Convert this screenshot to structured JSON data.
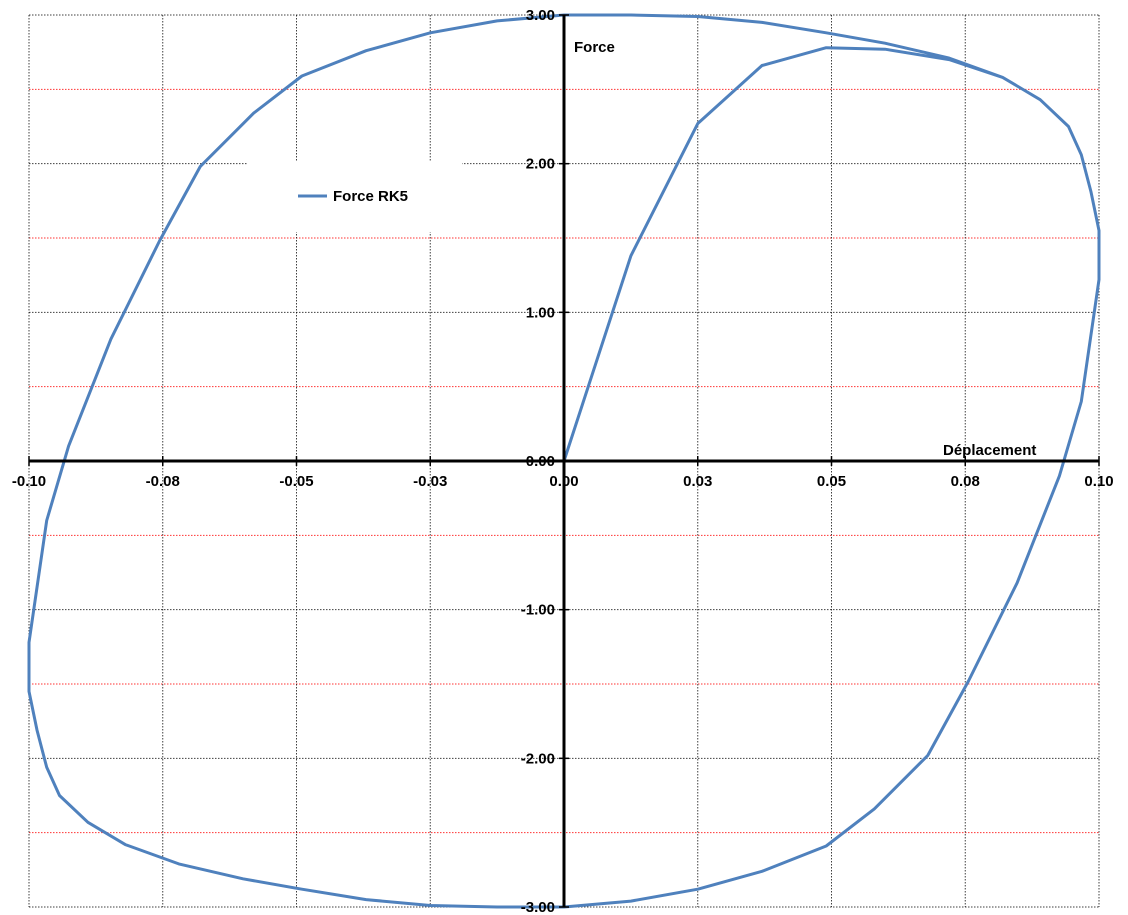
{
  "chart_data": {
    "type": "line",
    "xlabel": "Déplacement",
    "ylabel": "Force",
    "xlim": [
      -0.1,
      0.1
    ],
    "ylim": [
      -3,
      3
    ],
    "x_ticks": [
      {
        "value": -0.1,
        "label": "-0.10"
      },
      {
        "value": -0.075,
        "label": "-0.08"
      },
      {
        "value": -0.05,
        "label": "-0.05"
      },
      {
        "value": -0.025,
        "label": "-0.03"
      },
      {
        "value": 0,
        "label": "0.00"
      },
      {
        "value": 0.025,
        "label": "0.03"
      },
      {
        "value": 0.05,
        "label": "0.05"
      },
      {
        "value": 0.075,
        "label": "0.08"
      },
      {
        "value": 0.1,
        "label": "0.10"
      }
    ],
    "y_ticks": [
      {
        "value": 3,
        "label": "3.00"
      },
      {
        "value": 2,
        "label": "2.00"
      },
      {
        "value": 1,
        "label": "1.00"
      },
      {
        "value": 0,
        "label": "0.00"
      },
      {
        "value": -1,
        "label": "-1.00"
      },
      {
        "value": -2,
        "label": "-2.00"
      },
      {
        "value": -3,
        "label": "-3.00"
      }
    ],
    "y_minor_gridlines": [
      2.5,
      1.5,
      0.5,
      -0.5,
      -1.5,
      -2.5
    ],
    "grid": true,
    "legend_position": "top-left",
    "colors": {
      "series": "#4f81bd",
      "major_grid": "#000000",
      "minor_grid": "#ff0000",
      "axis": "#000000"
    },
    "series": [
      {
        "name": "Force RK5",
        "x": [
          0,
          0.0125,
          0.025,
          0.037,
          0.049,
          0.06,
          0.072,
          0.082,
          0.089,
          0.0943,
          0.0967,
          0.0985,
          0.1,
          0.1,
          0.0985,
          0.0967,
          0.0926,
          0.0847,
          0.0756,
          0.068,
          0.058,
          0.049,
          0.037,
          0.025,
          0.0125,
          0,
          -0.0125,
          -0.025,
          -0.037,
          -0.049,
          -0.06,
          -0.072,
          -0.082,
          -0.089,
          -0.0943,
          -0.0967,
          -0.0985,
          -0.1,
          -0.1,
          -0.0985,
          -0.0967,
          -0.0926,
          -0.0847,
          -0.0756,
          -0.068,
          -0.058,
          -0.049,
          -0.037,
          -0.025,
          -0.0125,
          0,
          0.0125,
          0.025,
          0.037,
          0.049,
          0.06,
          0.072,
          0.082
        ],
        "y": [
          0,
          1.38,
          2.27,
          2.66,
          2.78,
          2.77,
          2.7,
          2.58,
          2.43,
          2.25,
          2.06,
          1.81,
          1.55,
          1.22,
          0.85,
          0.4,
          -0.1,
          -0.82,
          -1.48,
          -1.98,
          -2.34,
          -2.59,
          -2.76,
          -2.88,
          -2.96,
          -3.0,
          -3.0,
          -2.99,
          -2.95,
          -2.88,
          -2.81,
          -2.71,
          -2.58,
          -2.43,
          -2.25,
          -2.06,
          -1.81,
          -1.55,
          -1.22,
          -0.85,
          -0.4,
          0.1,
          0.82,
          1.48,
          1.98,
          2.34,
          2.59,
          2.76,
          2.88,
          2.96,
          3.0,
          3.0,
          2.99,
          2.95,
          2.88,
          2.81,
          2.71,
          2.58
        ]
      }
    ]
  }
}
